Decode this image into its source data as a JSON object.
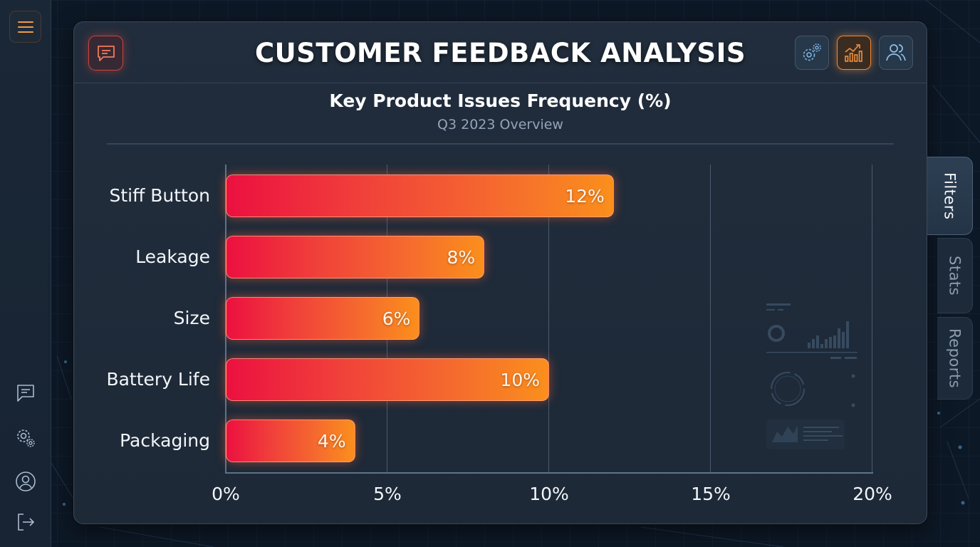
{
  "header": {
    "title": "CUSTOMER FEEDBACK ANALYSIS",
    "buttons": [
      {
        "name": "settings",
        "icon": "gears-icon",
        "active": false
      },
      {
        "name": "analytics",
        "icon": "bar-chart-trend-icon",
        "active": true
      },
      {
        "name": "users",
        "icon": "users-icon",
        "active": false
      }
    ]
  },
  "left_rail": {
    "top": {
      "icon": "hamburger-menu-icon"
    },
    "items": [
      {
        "name": "feedback",
        "icon": "chat-bubble-icon"
      },
      {
        "name": "settings",
        "icon": "gears-icon"
      },
      {
        "name": "profile",
        "icon": "user-circle-icon"
      },
      {
        "name": "logout",
        "icon": "logout-icon"
      }
    ]
  },
  "side_tabs": [
    {
      "label": "Filters",
      "active": true
    },
    {
      "label": "Stats",
      "active": false
    },
    {
      "label": "Reports",
      "active": false
    }
  ],
  "colors": {
    "bar_start": "#ec1040",
    "bar_end": "#fb8f1c",
    "accent_orange": "#ee8a3a",
    "accent_red": "#c8453e",
    "background": "#0d1826",
    "panel": "#1f2b39"
  },
  "chart_data": {
    "type": "bar",
    "orientation": "horizontal",
    "title": "Key Product Issues Frequency (%)",
    "subtitle": "Q3 2023 Overview",
    "categories": [
      "Stiff Button",
      "Leakage",
      "Size",
      "Battery Life",
      "Packaging"
    ],
    "values": [
      12,
      8,
      6,
      10,
      4
    ],
    "value_labels": [
      "12%",
      "8%",
      "6%",
      "10%",
      "4%"
    ],
    "xlabel": "",
    "ylabel": "",
    "xlim": [
      0,
      20
    ],
    "x_ticks": [
      0,
      5,
      10,
      15,
      20
    ],
    "x_tick_labels": [
      "0%",
      "5%",
      "10%",
      "15%",
      "20%"
    ],
    "grid": "vertical",
    "legend": "none"
  }
}
